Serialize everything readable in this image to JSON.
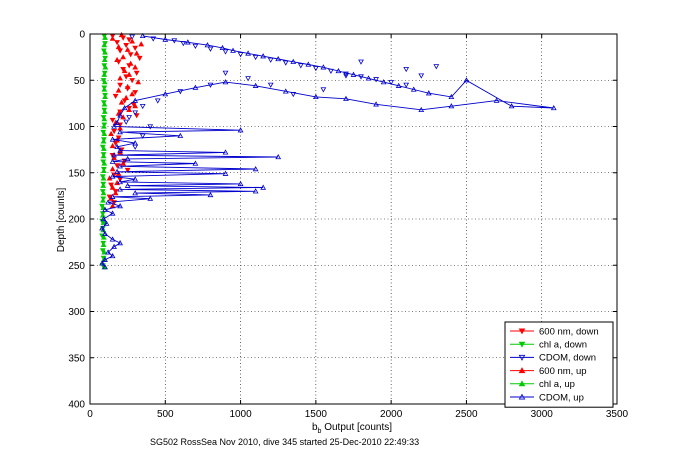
{
  "chart_data": {
    "type": "scatter",
    "title": "",
    "caption": "SG502 RossSea Nov 2010, dive 345 started 25-Dec-2010 22:49:33",
    "xlabel_main": "b",
    "xlabel_sub": "b",
    "xlabel_rest": " Output [counts]",
    "ylabel": "Depth [counts]",
    "xlim": [
      0,
      3500
    ],
    "ylim": [
      0,
      400
    ],
    "y_reversed": true,
    "grid": true,
    "xticks": [
      "0",
      "500",
      "1000",
      "1500",
      "2000",
      "2500",
      "3000",
      "3500"
    ],
    "yticks": [
      "0",
      "50",
      "100",
      "150",
      "200",
      "250",
      "300",
      "350",
      "400"
    ],
    "legend_position": "bottom-right",
    "series": [
      {
        "name": "600 nm, down",
        "color": "#ff0000",
        "marker": "triangle-down",
        "line": false,
        "points": [
          [
            150,
            2
          ],
          [
            220,
            4
          ],
          [
            260,
            6
          ],
          [
            180,
            9
          ],
          [
            240,
            12
          ],
          [
            300,
            15
          ],
          [
            200,
            18
          ],
          [
            270,
            22
          ],
          [
            330,
            26
          ],
          [
            190,
            30
          ],
          [
            260,
            34
          ],
          [
            220,
            38
          ],
          [
            310,
            42
          ],
          [
            240,
            46
          ],
          [
            280,
            50
          ],
          [
            200,
            55
          ],
          [
            250,
            59
          ],
          [
            300,
            63
          ],
          [
            170,
            67
          ],
          [
            230,
            72
          ],
          [
            290,
            76
          ],
          [
            260,
            80
          ],
          [
            200,
            84
          ],
          [
            310,
            88
          ],
          [
            150,
            93
          ],
          [
            200,
            98
          ],
          [
            160,
            105
          ],
          [
            190,
            112
          ],
          [
            170,
            118
          ],
          [
            210,
            125
          ],
          [
            150,
            131
          ],
          [
            230,
            137
          ],
          [
            180,
            142
          ],
          [
            250,
            147
          ],
          [
            160,
            152
          ],
          [
            200,
            157
          ],
          [
            140,
            163
          ],
          [
            170,
            170
          ],
          [
            130,
            176
          ],
          [
            160,
            182
          ]
        ]
      },
      {
        "name": "chl a, down",
        "color": "#00cc00",
        "marker": "triangle-down",
        "line": false,
        "points": [
          [
            95,
            2
          ],
          [
            100,
            10
          ],
          [
            92,
            18
          ],
          [
            100,
            26
          ],
          [
            95,
            34
          ],
          [
            98,
            42
          ],
          [
            90,
            50
          ],
          [
            95,
            58
          ],
          [
            100,
            66
          ],
          [
            92,
            74
          ],
          [
            95,
            82
          ],
          [
            90,
            90
          ],
          [
            95,
            98
          ],
          [
            88,
            106
          ],
          [
            92,
            114
          ],
          [
            85,
            122
          ],
          [
            90,
            130
          ],
          [
            88,
            138
          ],
          [
            92,
            146
          ],
          [
            85,
            154
          ],
          [
            88,
            162
          ],
          [
            85,
            170
          ],
          [
            88,
            178
          ],
          [
            80,
            186
          ],
          [
            85,
            194
          ],
          [
            80,
            202
          ],
          [
            85,
            210
          ],
          [
            80,
            218
          ],
          [
            88,
            226
          ],
          [
            85,
            234
          ],
          [
            90,
            242
          ],
          [
            85,
            250
          ]
        ]
      },
      {
        "name": "CDOM, down",
        "color": "#0000cc",
        "marker": "triangle-down",
        "line": false,
        "points": [
          [
            280,
            3
          ],
          [
            420,
            5
          ],
          [
            560,
            7
          ],
          [
            620,
            10
          ],
          [
            700,
            13
          ],
          [
            800,
            16
          ],
          [
            900,
            19
          ],
          [
            1000,
            22
          ],
          [
            1100,
            25
          ],
          [
            1200,
            28
          ],
          [
            1300,
            31
          ],
          [
            1400,
            34
          ],
          [
            1500,
            37
          ],
          [
            1600,
            40
          ],
          [
            1700,
            43
          ],
          [
            1800,
            46
          ],
          [
            1900,
            49
          ],
          [
            2000,
            52
          ],
          [
            2100,
            55
          ],
          [
            2200,
            45
          ],
          [
            2300,
            35
          ],
          [
            2100,
            38
          ],
          [
            1800,
            30
          ],
          [
            1700,
            45
          ],
          [
            1550,
            60
          ],
          [
            1350,
            65
          ],
          [
            1200,
            55
          ],
          [
            1050,
            48
          ],
          [
            900,
            42
          ],
          [
            800,
            55
          ],
          [
            600,
            62
          ],
          [
            450,
            72
          ],
          [
            350,
            78
          ],
          [
            300,
            85
          ],
          [
            260,
            90
          ],
          [
            240,
            95
          ],
          [
            400,
            100
          ],
          [
            350,
            110
          ],
          [
            300,
            122
          ]
        ]
      },
      {
        "name": "600 nm, up",
        "color": "#ff0000",
        "marker": "triangle-up",
        "line": false,
        "points": [
          [
            210,
            1
          ],
          [
            150,
            5
          ],
          [
            280,
            8
          ],
          [
            340,
            11
          ],
          [
            190,
            14
          ],
          [
            250,
            17
          ],
          [
            310,
            21
          ],
          [
            220,
            25
          ],
          [
            180,
            28
          ],
          [
            270,
            32
          ],
          [
            300,
            36
          ],
          [
            230,
            40
          ],
          [
            260,
            44
          ],
          [
            200,
            48
          ],
          [
            320,
            52
          ],
          [
            250,
            57
          ],
          [
            190,
            61
          ],
          [
            280,
            65
          ],
          [
            240,
            69
          ],
          [
            210,
            74
          ],
          [
            300,
            78
          ],
          [
            260,
            82
          ],
          [
            190,
            86
          ],
          [
            220,
            90
          ],
          [
            170,
            96
          ],
          [
            200,
            102
          ],
          [
            140,
            108
          ],
          [
            180,
            115
          ],
          [
            150,
            121
          ],
          [
            200,
            128
          ],
          [
            160,
            134
          ],
          [
            220,
            140
          ],
          [
            150,
            146
          ],
          [
            190,
            151
          ],
          [
            130,
            156
          ],
          [
            180,
            161
          ],
          [
            150,
            166
          ],
          [
            170,
            172
          ],
          [
            140,
            178
          ],
          [
            150,
            186
          ]
        ]
      },
      {
        "name": "chl a, up",
        "color": "#00cc00",
        "marker": "triangle-up",
        "line": false,
        "points": [
          [
            100,
            4
          ],
          [
            95,
            12
          ],
          [
            100,
            20
          ],
          [
            98,
            28
          ],
          [
            102,
            36
          ],
          [
            95,
            44
          ],
          [
            98,
            52
          ],
          [
            95,
            60
          ],
          [
            100,
            68
          ],
          [
            96,
            76
          ],
          [
            98,
            84
          ],
          [
            95,
            92
          ],
          [
            92,
            100
          ],
          [
            95,
            108
          ],
          [
            90,
            116
          ],
          [
            92,
            124
          ],
          [
            90,
            132
          ],
          [
            95,
            140
          ],
          [
            92,
            148
          ],
          [
            90,
            156
          ],
          [
            88,
            164
          ],
          [
            90,
            172
          ],
          [
            86,
            180
          ],
          [
            88,
            188
          ],
          [
            85,
            196
          ],
          [
            90,
            204
          ],
          [
            88,
            212
          ],
          [
            92,
            220
          ],
          [
            90,
            228
          ],
          [
            95,
            236
          ],
          [
            92,
            244
          ],
          [
            95,
            252
          ]
        ]
      },
      {
        "name": "CDOM, up",
        "color": "#0000cc",
        "marker": "triangle-up",
        "line": true,
        "points": [
          [
            350,
            2
          ],
          [
            500,
            6
          ],
          [
            650,
            9
          ],
          [
            780,
            12
          ],
          [
            880,
            15
          ],
          [
            950,
            18
          ],
          [
            1050,
            21
          ],
          [
            1150,
            24
          ],
          [
            1250,
            27
          ],
          [
            1350,
            30
          ],
          [
            1450,
            33
          ],
          [
            1550,
            36
          ],
          [
            1650,
            40
          ],
          [
            1750,
            44
          ],
          [
            1850,
            48
          ],
          [
            1950,
            52
          ],
          [
            2050,
            56
          ],
          [
            2150,
            60
          ],
          [
            2250,
            64
          ],
          [
            2400,
            68
          ],
          [
            2500,
            50
          ],
          [
            2800,
            78
          ],
          [
            3080,
            80
          ],
          [
            2700,
            72
          ],
          [
            2400,
            78
          ],
          [
            2200,
            82
          ],
          [
            1900,
            76
          ],
          [
            1700,
            70
          ],
          [
            1500,
            68
          ],
          [
            1300,
            62
          ],
          [
            1100,
            56
          ],
          [
            900,
            52
          ],
          [
            700,
            58
          ],
          [
            500,
            65
          ],
          [
            300,
            72
          ],
          [
            230,
            80
          ],
          [
            200,
            88
          ],
          [
            180,
            96
          ],
          [
            160,
            100
          ],
          [
            1000,
            104
          ],
          [
            200,
            106
          ],
          [
            600,
            110
          ],
          [
            150,
            114
          ],
          [
            300,
            118
          ],
          [
            180,
            122
          ],
          [
            200,
            126
          ],
          [
            900,
            128
          ],
          [
            160,
            131
          ],
          [
            1250,
            133
          ],
          [
            250,
            135
          ],
          [
            150,
            138
          ],
          [
            700,
            140
          ],
          [
            200,
            143
          ],
          [
            1100,
            146
          ],
          [
            180,
            149
          ],
          [
            900,
            151
          ],
          [
            150,
            154
          ],
          [
            300,
            157
          ],
          [
            200,
            160
          ],
          [
            1000,
            162
          ],
          [
            250,
            164
          ],
          [
            1150,
            166
          ],
          [
            200,
            168
          ],
          [
            1100,
            170
          ],
          [
            300,
            172
          ],
          [
            800,
            174
          ],
          [
            150,
            176
          ],
          [
            400,
            178
          ],
          [
            120,
            182
          ],
          [
            200,
            186
          ],
          [
            100,
            190
          ],
          [
            150,
            194
          ],
          [
            90,
            200
          ],
          [
            110,
            205
          ],
          [
            80,
            210
          ],
          [
            100,
            216
          ],
          [
            150,
            222
          ],
          [
            200,
            226
          ],
          [
            160,
            230
          ],
          [
            120,
            236
          ],
          [
            150,
            240
          ],
          [
            100,
            244
          ],
          [
            80,
            248
          ],
          [
            100,
            252
          ]
        ]
      }
    ]
  }
}
